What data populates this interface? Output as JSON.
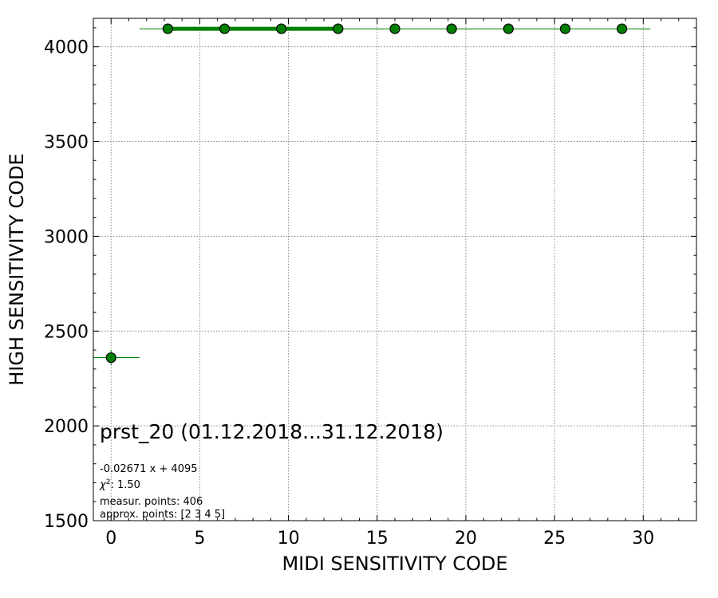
{
  "chart_data": {
    "type": "scatter",
    "xlabel": "MIDI SENSITIVITY CODE",
    "ylabel": "HIGH SENSITIVITY CODE",
    "xlim": [
      -1,
      33
    ],
    "ylim": [
      1500,
      4150
    ],
    "xticks": [
      0,
      5,
      10,
      15,
      20,
      25,
      30
    ],
    "yticks": [
      1500,
      2000,
      2500,
      3000,
      3500,
      4000
    ],
    "grid": true,
    "series": [
      {
        "color": "#008000",
        "points": [
          {
            "x": 0.0,
            "y": 2360,
            "xerr": 1.6,
            "yerr": 40
          },
          {
            "x": 3.2,
            "y": 4095,
            "xerr": 1.6,
            "yerr": 10
          },
          {
            "x": 6.4,
            "y": 4095,
            "xerr": 1.6,
            "yerr": 10
          },
          {
            "x": 9.6,
            "y": 4095,
            "xerr": 1.6,
            "yerr": 10
          },
          {
            "x": 12.8,
            "y": 4095,
            "xerr": 1.6,
            "yerr": 10
          },
          {
            "x": 16.0,
            "y": 4095,
            "xerr": 1.6,
            "yerr": 10
          },
          {
            "x": 19.2,
            "y": 4095,
            "xerr": 1.6,
            "yerr": 10
          },
          {
            "x": 22.4,
            "y": 4095,
            "xerr": 1.6,
            "yerr": 10
          },
          {
            "x": 25.6,
            "y": 4095,
            "xerr": 1.6,
            "yerr": 10
          },
          {
            "x": 28.8,
            "y": 4095,
            "xerr": 1.6,
            "yerr": 10
          }
        ]
      }
    ],
    "fit": {
      "slope": -0.02671,
      "intercept": 4095,
      "x_range": [
        3.2,
        12.8
      ],
      "color": "#008000"
    },
    "annotation": {
      "title": "prst_20 (01.12.2018...31.12.2018)",
      "formula": "-0.02671 x + 4095",
      "chi2_symbol": "χ",
      "chi2_value": ": 1.50",
      "measur_points": "measur. points: 406",
      "approx_points": "approx. points: [2 3 4 5]"
    }
  }
}
